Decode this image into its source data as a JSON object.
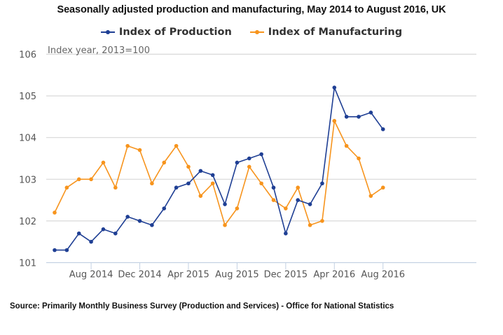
{
  "chart_data": {
    "type": "line",
    "title": "Seasonally adjusted production and manufacturing, May 2014 to August 2016, UK",
    "ylabel": "Index year, 2013=100",
    "xlabel": "",
    "ylim": [
      101,
      106
    ],
    "yticks": [
      101,
      102,
      103,
      104,
      105,
      106
    ],
    "grid": true,
    "legend_position": "top-center",
    "x": [
      "May 2014",
      "Jun 2014",
      "Jul 2014",
      "Aug 2014",
      "Sep 2014",
      "Oct 2014",
      "Nov 2014",
      "Dec 2014",
      "Jan 2015",
      "Feb 2015",
      "Mar 2015",
      "Apr 2015",
      "May 2015",
      "Jun 2015",
      "Jul 2015",
      "Aug 2015",
      "Sep 2015",
      "Oct 2015",
      "Nov 2015",
      "Dec 2015",
      "Jan 2016",
      "Feb 2016",
      "Mar 2016",
      "Apr 2016",
      "May 2016",
      "Jun 2016",
      "Jul 2016",
      "Aug 2016"
    ],
    "xtick_labels": [
      {
        "index": 3,
        "label": "Aug 2014"
      },
      {
        "index": 7,
        "label": "Dec 2014"
      },
      {
        "index": 11,
        "label": "Apr 2015"
      },
      {
        "index": 15,
        "label": "Aug 2015"
      },
      {
        "index": 19,
        "label": "Dec 2015"
      },
      {
        "index": 23,
        "label": "Apr 2016"
      },
      {
        "index": 27,
        "label": "Aug 2016"
      }
    ],
    "series": [
      {
        "name": "Index of Production",
        "color": "#1f3f94",
        "values": [
          101.3,
          101.3,
          101.7,
          101.5,
          101.8,
          101.7,
          102.1,
          102.0,
          101.9,
          102.3,
          102.8,
          102.9,
          103.2,
          103.1,
          102.4,
          103.4,
          103.5,
          103.6,
          102.8,
          101.7,
          102.5,
          102.4,
          102.9,
          105.2,
          104.5,
          104.5,
          104.6,
          104.2
        ]
      },
      {
        "name": "Index of Manufacturing",
        "color": "#f7941d",
        "values": [
          102.2,
          102.8,
          103.0,
          103.0,
          103.4,
          102.8,
          103.8,
          103.7,
          102.9,
          103.4,
          103.8,
          103.3,
          102.6,
          102.9,
          101.9,
          102.3,
          103.3,
          102.9,
          102.5,
          102.3,
          102.8,
          101.9,
          102.0,
          104.4,
          103.8,
          103.5,
          102.6,
          102.8
        ]
      }
    ],
    "source": "Source: Primarily Monthly Business Survey (Production and Services) - Office for National Statistics"
  }
}
